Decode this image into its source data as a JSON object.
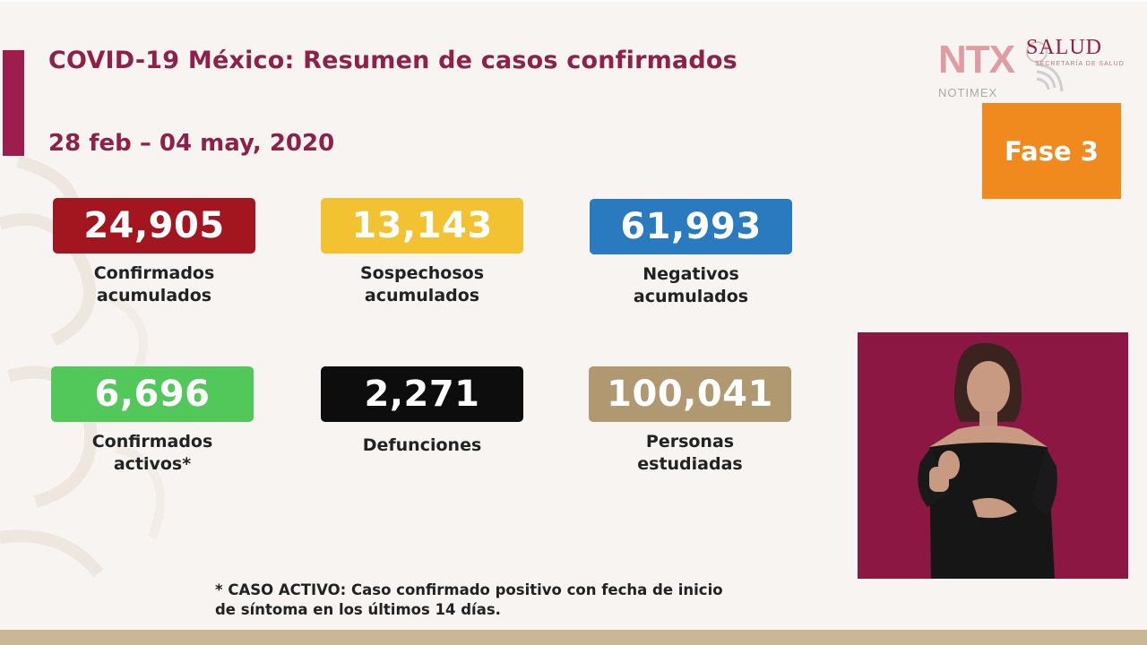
{
  "header": {
    "title": "COVID-19 México: Resumen de casos confirmados",
    "date_range": "28 feb – 04 may, 2020"
  },
  "logos": {
    "ntx_text": "NTX",
    "notimex_text": "NOTIMEX",
    "salud_text": "SALUD",
    "secretaria_text": "SECRETARÍA DE SALUD"
  },
  "phase_badge": {
    "label": "Fase 3",
    "color": "#f08a1e"
  },
  "stats": [
    {
      "value": "24,905",
      "label": "Confirmados\nacumulados",
      "color": "#a3151f"
    },
    {
      "value": "13,143",
      "label": "Sospechosos\nacumulados",
      "color": "#f2c230"
    },
    {
      "value": "61,993",
      "label": "Negativos\nacumulados",
      "color": "#2a7ac0"
    },
    {
      "value": "6,696",
      "label": "Confirmados\nactivos*",
      "color": "#53c85a"
    },
    {
      "value": "2,271",
      "label": "Defunciones",
      "color": "#0d0d0d"
    },
    {
      "value": "100,041",
      "label": "Personas\nestudiadas",
      "color": "#b09870"
    }
  ],
  "footnote": "* CASO ACTIVO: Caso confirmado positivo con fecha de inicio\nde síntoma en los últimos 14 días."
}
